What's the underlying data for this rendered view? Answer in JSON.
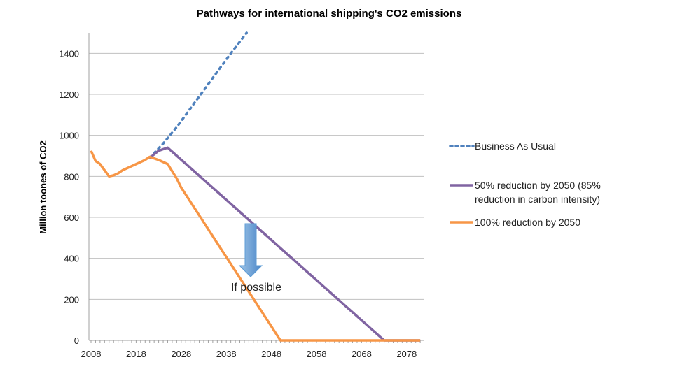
{
  "chart_data": {
    "type": "line",
    "title": "Pathways for international shipping's CO2 emissions",
    "xlabel": "",
    "ylabel": "Million toones of CO2",
    "xlim": [
      2008,
      2081
    ],
    "ylim": [
      0,
      1500
    ],
    "yticks": [
      0,
      200,
      400,
      600,
      800,
      1000,
      1200,
      1400
    ],
    "xticks": [
      2008,
      2018,
      2028,
      2038,
      2048,
      2058,
      2068,
      2078
    ],
    "grid": "horizontal",
    "legend_placement": "right",
    "series": [
      {
        "name": "Business As Usual",
        "color": "#4f81bd",
        "style": "dotted",
        "x": [
          2021,
          2024,
          2027,
          2030,
          2033,
          2036,
          2039,
          2042.5
        ],
        "y": [
          890,
          960,
          1040,
          1130,
          1220,
          1310,
          1400,
          1500
        ]
      },
      {
        "name": "50% reduction by 2050 (85% reduction in carbon intensity)",
        "color": "#8064a2",
        "style": "solid",
        "x": [
          2021,
          2023,
          2025,
          2073,
          2081
        ],
        "y": [
          890,
          925,
          940,
          0,
          0
        ]
      },
      {
        "name": "100% reduction by 2050",
        "color": "#f79646",
        "style": "solid",
        "x": [
          2008,
          2009,
          2010,
          2011,
          2012,
          2013,
          2014,
          2015,
          2016,
          2017,
          2018,
          2019,
          2020,
          2021,
          2023,
          2025,
          2027,
          2028,
          2050,
          2081
        ],
        "y": [
          925,
          875,
          860,
          830,
          800,
          805,
          815,
          830,
          840,
          850,
          860,
          870,
          880,
          895,
          880,
          860,
          790,
          745,
          0,
          0
        ]
      }
    ],
    "annotations": [
      {
        "text": "If possible",
        "arrow_color": "#5b9bd5"
      }
    ]
  }
}
